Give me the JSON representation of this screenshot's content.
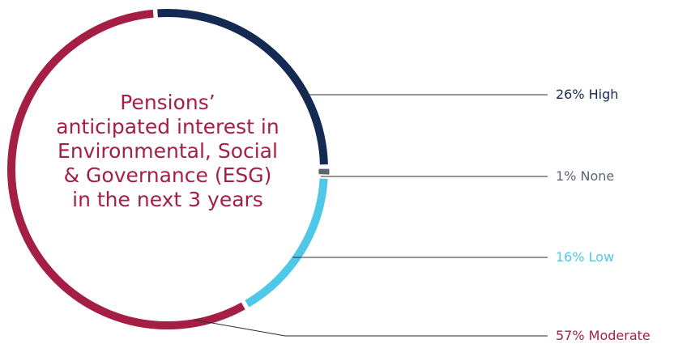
{
  "chart_data": {
    "type": "pie",
    "title_lines": [
      "Pensions’",
      "anticipated interest in",
      "Environmental, Social",
      "& Governance (ESG)",
      "in the next 3 years"
    ],
    "slices": [
      {
        "label": "26% High",
        "value": 26,
        "color": "#142a52"
      },
      {
        "label": "1% None",
        "value": 1,
        "color": "#5b6670"
      },
      {
        "label": "16% Low",
        "value": 16,
        "color": "#4fc7e8"
      },
      {
        "label": "57% Moderate",
        "value": 57,
        "color": "#a51f45"
      }
    ],
    "legend": "right"
  }
}
